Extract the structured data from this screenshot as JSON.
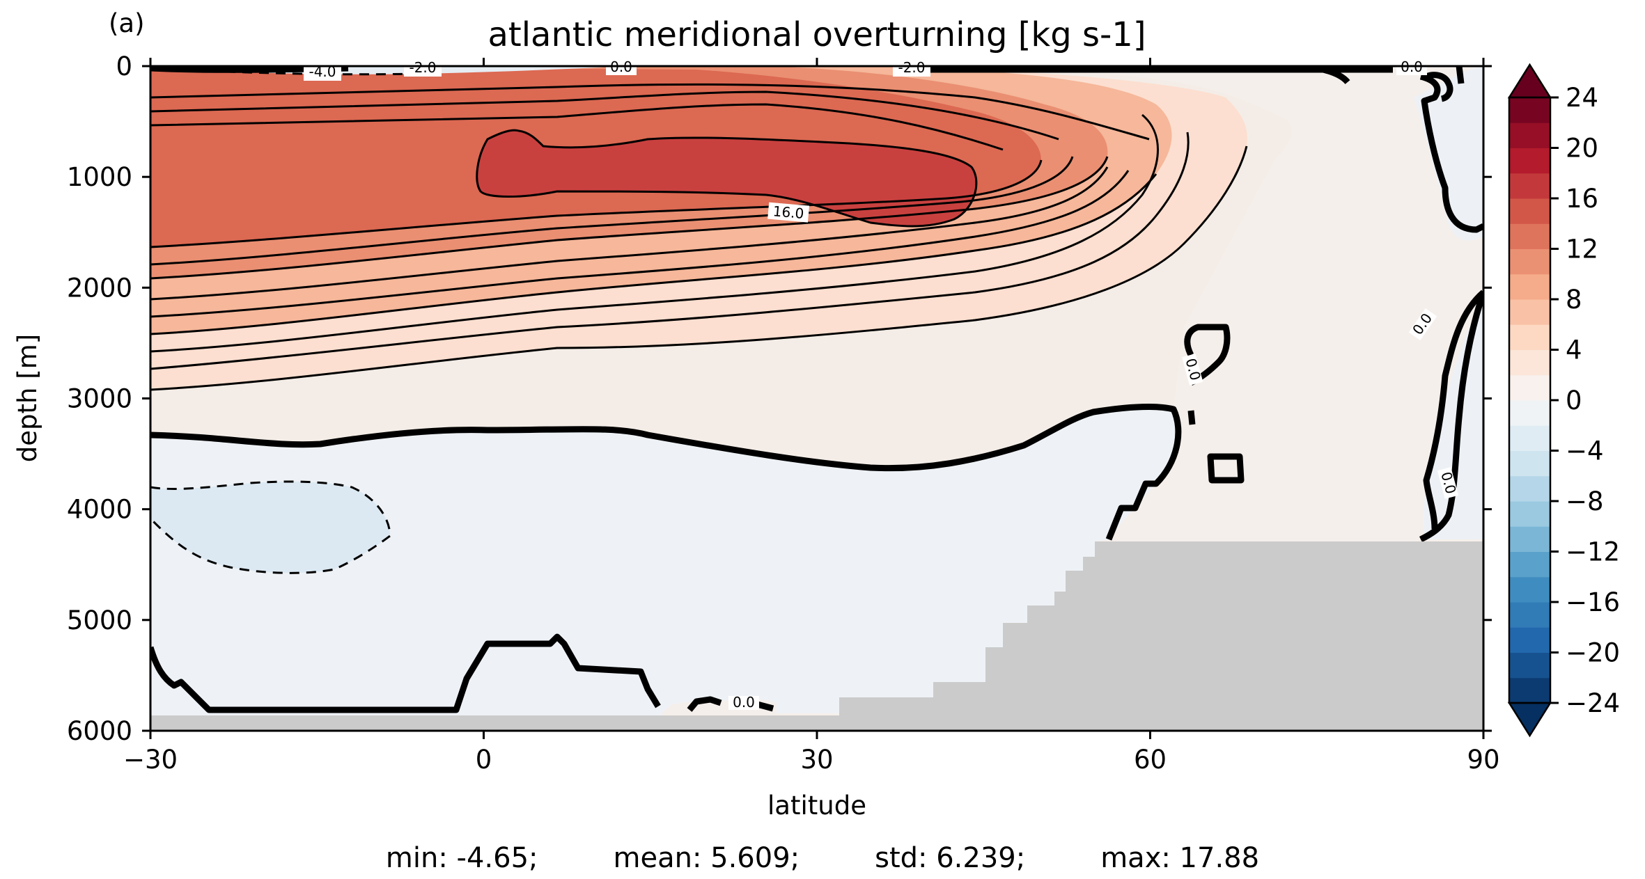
{
  "panel_label": "(a)",
  "chart_data": {
    "type": "heatmap",
    "subtype": "filled-contour",
    "title": "atlantic meridional overturning [kg s-1]",
    "xlabel": "latitude",
    "ylabel": "depth [m]",
    "xlim": [
      -30,
      90
    ],
    "ylim": [
      6000,
      0
    ],
    "xticks": [
      -30,
      0,
      30,
      60,
      90
    ],
    "xtick_labels": [
      "−30",
      "0",
      "30",
      "60",
      "90"
    ],
    "yticks": [
      0,
      1000,
      2000,
      3000,
      4000,
      5000,
      6000
    ],
    "ytick_labels": [
      "0",
      "1000",
      "2000",
      "3000",
      "4000",
      "5000",
      "6000"
    ],
    "y_inverted": true,
    "colormap": "RdBu_r",
    "levels_min": -24,
    "levels_max": 24,
    "levels_step": 2,
    "extend": "both",
    "colorbar_ticks": [
      24,
      20,
      16,
      12,
      8,
      4,
      0,
      -4,
      -8,
      -12,
      -16,
      -20,
      -24
    ],
    "colorbar_tick_labels": [
      "24",
      "20",
      "16",
      "12",
      "8",
      "4",
      "0",
      "−4",
      "−8",
      "−12",
      "−16",
      "−20",
      "−24"
    ],
    "contour_labels": [
      "-4.0",
      "-2.0",
      "0.0",
      "-2.0",
      "0.0",
      "16.0",
      "0.0",
      "0.0",
      "0.0",
      "0.0"
    ],
    "max_region": {
      "lat_range": [
        0,
        45
      ],
      "depth_range": [
        600,
        1500
      ],
      "value": 17.88
    },
    "negative_cell": {
      "lat_range": [
        -30,
        -8
      ],
      "depth_range": [
        3700,
        4600
      ],
      "value": -4.65
    },
    "zero_contour_depth_at_lat": {
      "-30": 3350,
      "0": 3300,
      "30": 3700,
      "45": 3700
    },
    "land_mask_color": "#cbcbcb",
    "grid": false,
    "stats": {
      "min": "min: -4.65;",
      "mean": "mean: 5.609;",
      "std": "std: 6.239;",
      "max": "max: 17.88"
    }
  }
}
